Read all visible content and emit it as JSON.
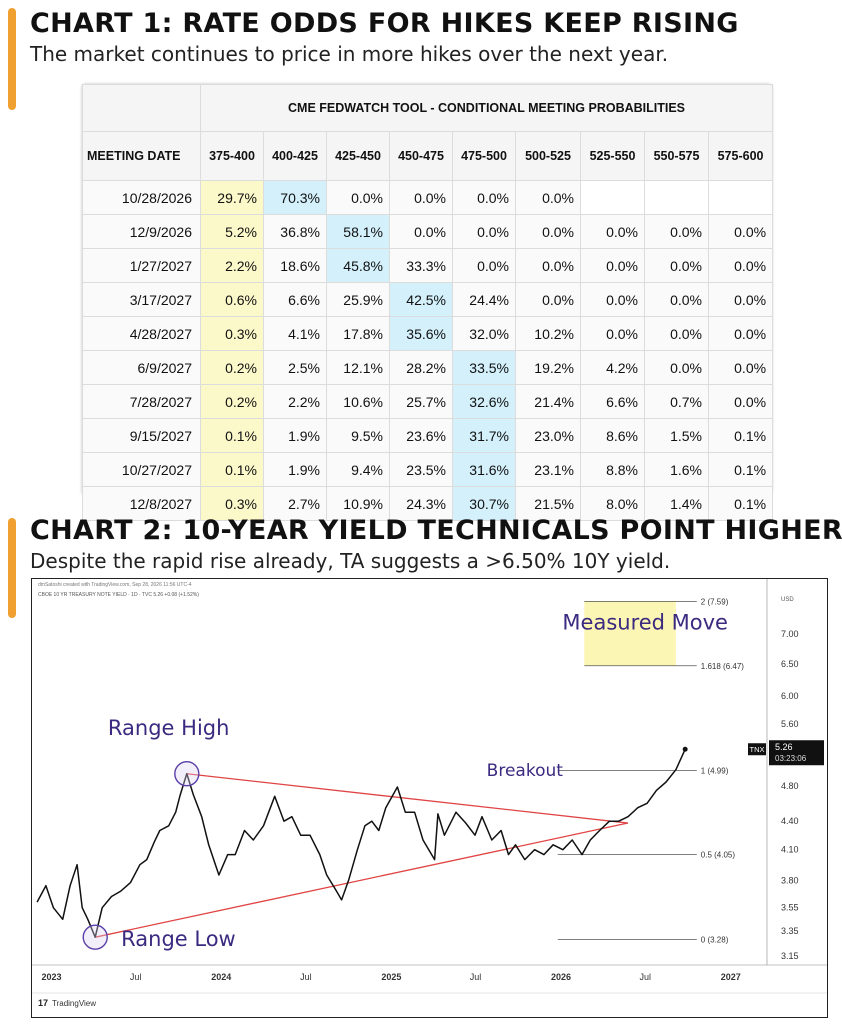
{
  "header1": {
    "title": "CHART 1: RATE ODDS FOR HIKES KEEP RISING",
    "subtitle": "The market continues to price in more hikes over the next year."
  },
  "header2": {
    "title": "CHART 2: 10-YEAR YIELD TECHNICALS POINT HIGHER",
    "subtitle": "Despite the rapid rise already, TA suggests a >6.50% 10Y yield."
  },
  "chart_data": [
    {
      "type": "table",
      "title": "CME FEDWATCH TOOL - CONDITIONAL MEETING PROBABILITIES",
      "columns": [
        "MEETING DATE",
        "375-400",
        "400-425",
        "425-450",
        "450-475",
        "475-500",
        "500-525",
        "525-550",
        "550-575",
        "575-600"
      ],
      "rows": [
        [
          "10/28/2026",
          "29.7%",
          "70.3%",
          "0.0%",
          "0.0%",
          "0.0%",
          "0.0%",
          "",
          "",
          ""
        ],
        [
          "12/9/2026",
          "5.2%",
          "36.8%",
          "58.1%",
          "0.0%",
          "0.0%",
          "0.0%",
          "0.0%",
          "0.0%",
          "0.0%"
        ],
        [
          "1/27/2027",
          "2.2%",
          "18.6%",
          "45.8%",
          "33.3%",
          "0.0%",
          "0.0%",
          "0.0%",
          "0.0%",
          "0.0%"
        ],
        [
          "3/17/2027",
          "0.6%",
          "6.6%",
          "25.9%",
          "42.5%",
          "24.4%",
          "0.0%",
          "0.0%",
          "0.0%",
          "0.0%"
        ],
        [
          "4/28/2027",
          "0.3%",
          "4.1%",
          "17.8%",
          "35.6%",
          "32.0%",
          "10.2%",
          "0.0%",
          "0.0%",
          "0.0%"
        ],
        [
          "6/9/2027",
          "0.2%",
          "2.5%",
          "12.1%",
          "28.2%",
          "33.5%",
          "19.2%",
          "4.2%",
          "0.0%",
          "0.0%"
        ],
        [
          "7/28/2027",
          "0.2%",
          "2.2%",
          "10.6%",
          "25.7%",
          "32.6%",
          "21.4%",
          "6.6%",
          "0.7%",
          "0.0%"
        ],
        [
          "9/15/2027",
          "0.1%",
          "1.9%",
          "9.5%",
          "23.6%",
          "31.7%",
          "23.0%",
          "8.6%",
          "1.5%",
          "0.1%"
        ],
        [
          "10/27/2027",
          "0.1%",
          "1.9%",
          "9.4%",
          "23.5%",
          "31.6%",
          "23.1%",
          "8.8%",
          "1.6%",
          "0.1%"
        ],
        [
          "12/8/2027",
          "0.3%",
          "2.7%",
          "10.9%",
          "24.3%",
          "30.7%",
          "21.5%",
          "8.0%",
          "1.4%",
          "0.1%"
        ]
      ],
      "highlight_current_col": 1,
      "highlight_max_col": [
        2,
        3,
        3,
        4,
        4,
        5,
        5,
        5,
        5,
        5
      ],
      "colors": {
        "current": "#fbf8c9",
        "max": "#d3f0fb"
      }
    },
    {
      "type": "line",
      "series_label": "CBOE 10 YR TREASURY NOTE YIELD · 1D · TVC 5.26 +0.08 (+1.52%)",
      "watermark": "dmSatoshi created with TradingView.com, Sep 28, 2026 11:56 UTC-4",
      "brand": "TradingView",
      "currency": "USD",
      "symbol": "TNX",
      "last_value": "5.26",
      "countdown": "03:23:06",
      "x_ticks": [
        "2023",
        "Jul",
        "2024",
        "Jul",
        "2025",
        "Jul",
        "2026",
        "Jul",
        "2027"
      ],
      "y_ticks": [
        "7.00",
        "6.50",
        "6.00",
        "5.60",
        "4.80",
        "4.40",
        "4.10",
        "3.80",
        "3.55",
        "3.35",
        "3.15"
      ],
      "y_tick_values": [
        7.0,
        6.5,
        6.0,
        5.6,
        4.8,
        4.4,
        4.1,
        3.8,
        3.55,
        3.35,
        3.15
      ],
      "scale": "log",
      "ylim": [
        3.08,
        7.75
      ],
      "xlim": [
        "2022-11-20",
        "2027-03-20"
      ],
      "series": [
        {
          "name": "TNX",
          "color": "#111111",
          "x": [
            "2022-12-01",
            "2022-12-20",
            "2023-01-05",
            "2023-01-25",
            "2023-02-10",
            "2023-02-25",
            "2023-03-08",
            "2023-03-20",
            "2023-04-05",
            "2023-04-20",
            "2023-05-10",
            "2023-05-30",
            "2023-06-20",
            "2023-07-10",
            "2023-07-25",
            "2023-08-10",
            "2023-08-22",
            "2023-09-10",
            "2023-09-25",
            "2023-10-05",
            "2023-10-19",
            "2023-11-02",
            "2023-11-20",
            "2023-12-05",
            "2023-12-27",
            "2024-01-15",
            "2024-01-31",
            "2024-02-20",
            "2024-03-10",
            "2024-04-01",
            "2024-04-25",
            "2024-05-15",
            "2024-06-01",
            "2024-06-20",
            "2024-07-10",
            "2024-07-31",
            "2024-08-15",
            "2024-09-05",
            "2024-09-16",
            "2024-10-01",
            "2024-10-20",
            "2024-11-05",
            "2024-11-20",
            "2024-12-05",
            "2024-12-20",
            "2025-01-14",
            "2025-01-31",
            "2025-02-20",
            "2025-03-10",
            "2025-04-04",
            "2025-04-11",
            "2025-04-25",
            "2025-05-20",
            "2025-06-10",
            "2025-06-30",
            "2025-07-15",
            "2025-08-05",
            "2025-08-25",
            "2025-09-10",
            "2025-09-25",
            "2025-10-15",
            "2025-11-05",
            "2025-11-25",
            "2025-12-15",
            "2026-01-05",
            "2026-01-25",
            "2026-02-15",
            "2026-03-05",
            "2026-03-25",
            "2026-04-15",
            "2026-05-05",
            "2026-05-25",
            "2026-06-15",
            "2026-07-05",
            "2026-07-25",
            "2026-08-15",
            "2026-09-05",
            "2026-09-25"
          ],
          "values": [
            3.6,
            3.75,
            3.55,
            3.45,
            3.75,
            3.95,
            3.55,
            3.45,
            3.3,
            3.55,
            3.65,
            3.7,
            3.78,
            3.95,
            4.0,
            4.18,
            4.3,
            4.35,
            4.5,
            4.7,
            4.95,
            4.7,
            4.45,
            4.15,
            3.85,
            4.05,
            4.05,
            4.3,
            4.2,
            4.35,
            4.68,
            4.4,
            4.45,
            4.25,
            4.25,
            4.05,
            3.85,
            3.7,
            3.62,
            3.8,
            4.1,
            4.35,
            4.4,
            4.3,
            4.55,
            4.79,
            4.5,
            4.5,
            4.2,
            4.0,
            4.48,
            4.25,
            4.5,
            4.38,
            4.25,
            4.45,
            4.2,
            4.3,
            4.05,
            4.15,
            4.0,
            4.1,
            4.05,
            4.15,
            4.1,
            4.2,
            4.05,
            4.2,
            4.3,
            4.4,
            4.4,
            4.45,
            4.55,
            4.6,
            4.75,
            4.85,
            5.0,
            5.26
          ]
        }
      ],
      "trendlines": [
        {
          "name": "upper",
          "color": "#e04444",
          "from": {
            "x": "2023-10-19",
            "y": 4.95
          },
          "to": {
            "x": "2026-05-25",
            "y": 4.38
          }
        },
        {
          "name": "lower",
          "color": "#e04444",
          "from": {
            "x": "2023-04-05",
            "y": 3.3
          },
          "to": {
            "x": "2026-05-25",
            "y": 4.38
          }
        }
      ],
      "fib_levels": [
        {
          "label": "2 (7.59)",
          "value": 7.59
        },
        {
          "label": "1.618 (6.47)",
          "value": 6.47
        },
        {
          "label": "1 (4.99)",
          "value": 4.99
        },
        {
          "label": "0.5 (4.05)",
          "value": 4.05
        },
        {
          "label": "0 (3.28)",
          "value": 3.28
        }
      ],
      "measured_move_zone": {
        "from": 6.47,
        "to": 7.59,
        "color": "#fbf6b4"
      },
      "annotations": [
        {
          "text": "Measured Move",
          "x": "2026-07-01",
          "y": 7.08,
          "color": "#3b2a80"
        },
        {
          "text": "Range High",
          "x": "2023-09-10",
          "y": 5.45,
          "color": "#3b2a80"
        },
        {
          "text": "Range Low",
          "x": "2023-10-01",
          "y": 3.23,
          "color": "#3b2a80"
        },
        {
          "text": "Breakout",
          "x": "2025-10-15",
          "y": 4.92,
          "color": "#3b2a80"
        }
      ],
      "circles": [
        {
          "name": "range-high-circle",
          "x": "2023-10-19",
          "y": 4.95
        },
        {
          "name": "range-low-circle",
          "x": "2023-04-05",
          "y": 3.3
        }
      ]
    }
  ]
}
